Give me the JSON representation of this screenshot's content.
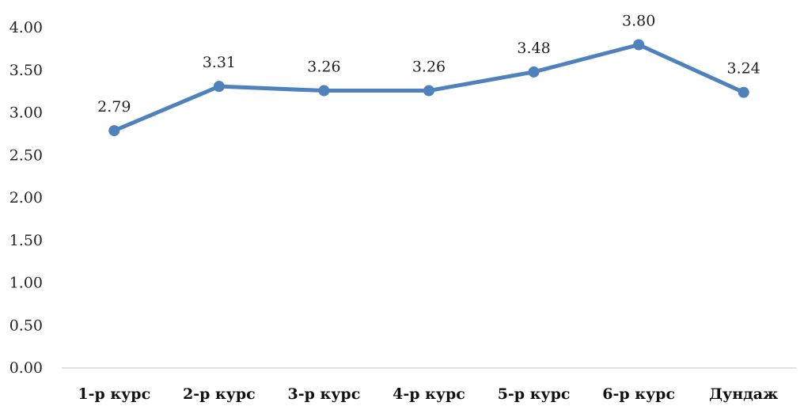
{
  "chart_data": {
    "type": "line",
    "categories": [
      "1-р курс",
      "2-р курс",
      "3-р курс",
      "4-р курс",
      "5-р курс",
      "6-р курс",
      "Дундаж"
    ],
    "series": [
      {
        "values": [
          2.79,
          3.31,
          3.26,
          3.26,
          3.48,
          3.8,
          3.24
        ],
        "data_labels": [
          "2.79",
          "3.31",
          "3.26",
          "3.26",
          "3.48",
          "3.80",
          "3.24"
        ],
        "color": "#4f81bd"
      }
    ],
    "title": "",
    "xlabel": "",
    "ylabel": "",
    "ylim": [
      0,
      4
    ],
    "yticks": [
      "0.00",
      "0.50",
      "1.00",
      "1.50",
      "2.00",
      "2.50",
      "3.00",
      "3.50",
      "4.00"
    ],
    "grid": false,
    "legend": "none",
    "axis_color": "#d9d9d9"
  }
}
